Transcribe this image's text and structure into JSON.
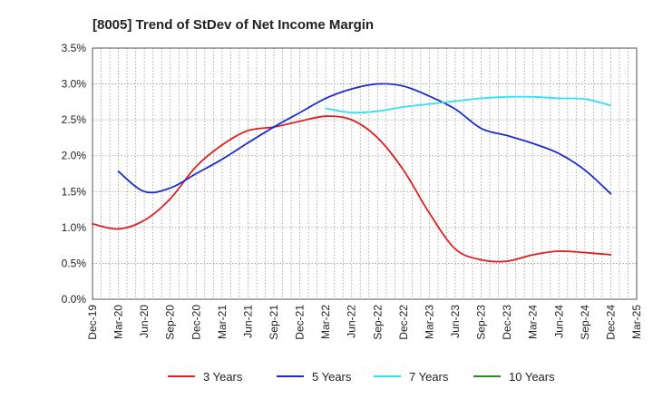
{
  "chart_data": {
    "type": "line",
    "title": "[8005]  Trend of StDev of Net Income Margin",
    "xlabel": "",
    "ylabel": "",
    "ylim": [
      0,
      3.5
    ],
    "yticks": [
      "0.0%",
      "0.5%",
      "1.0%",
      "1.5%",
      "2.0%",
      "2.5%",
      "3.0%",
      "3.5%"
    ],
    "x_ticks": [
      "Dec-19",
      "Mar-20",
      "Jun-20",
      "Sep-20",
      "Dec-20",
      "Mar-21",
      "Jun-21",
      "Sep-21",
      "Dec-21",
      "Mar-22",
      "Jun-22",
      "Sep-22",
      "Dec-22",
      "Mar-23",
      "Jun-23",
      "Sep-23",
      "Dec-23",
      "Mar-24",
      "Jun-24",
      "Sep-24",
      "Dec-24",
      "Mar-25"
    ],
    "grid": true,
    "legend_position": "bottom",
    "series": [
      {
        "name": "3 Years",
        "color": "#e02020",
        "values": [
          1.05,
          0.98,
          1.1,
          1.4,
          1.85,
          2.15,
          2.35,
          2.4,
          2.48,
          2.55,
          2.5,
          2.25,
          1.8,
          1.2,
          0.7,
          0.55,
          0.53,
          0.62,
          0.67,
          0.65,
          0.62
        ]
      },
      {
        "name": "5 Years",
        "color": "#1a2ed0",
        "values": [
          null,
          1.78,
          1.5,
          1.55,
          1.75,
          1.95,
          2.18,
          2.4,
          2.6,
          2.8,
          2.93,
          3.0,
          2.97,
          2.83,
          2.65,
          2.38,
          2.28,
          2.17,
          2.03,
          1.8,
          1.47
        ]
      },
      {
        "name": "7 Years",
        "color": "#33e0f0",
        "values": [
          null,
          null,
          null,
          null,
          null,
          null,
          null,
          null,
          null,
          2.66,
          2.6,
          2.62,
          2.68,
          2.72,
          2.76,
          2.8,
          2.82,
          2.82,
          2.8,
          2.79,
          2.7
        ]
      },
      {
        "name": "10 Years",
        "color": "#2a8a2a",
        "values": []
      }
    ]
  }
}
